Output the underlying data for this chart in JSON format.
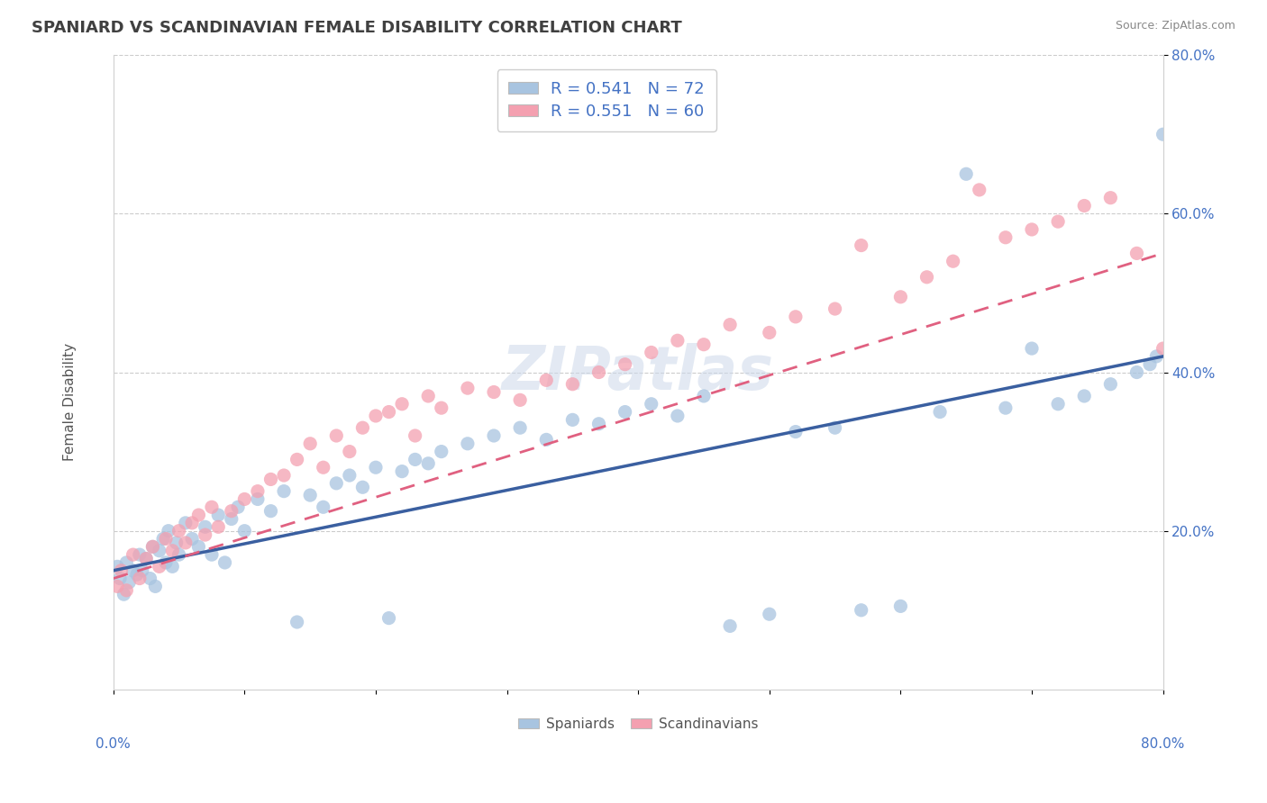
{
  "title": "SPANIARD VS SCANDINAVIAN FEMALE DISABILITY CORRELATION CHART",
  "source": "Source: ZipAtlas.com",
  "ylabel": "Female Disability",
  "spaniards_R": 0.541,
  "spaniards_N": 72,
  "scandinavians_R": 0.551,
  "scandinavians_N": 60,
  "spaniard_color": "#a8c4e0",
  "scandinavian_color": "#f4a0b0",
  "spaniard_line_color": "#3a5fa0",
  "scandinavian_line_color": "#e06080",
  "legend_label_1": "Spaniards",
  "legend_label_2": "Scandinavians",
  "title_color": "#404040",
  "axis_label_color": "#4472c4",
  "xmin": 0,
  "xmax": 80,
  "ymin": 0,
  "ymax": 80,
  "yticks": [
    20,
    40,
    60,
    80
  ],
  "ytick_labels": [
    "20.0%",
    "40.0%",
    "60.0%",
    "80.0%"
  ],
  "sp_line_x0": 0,
  "sp_line_y0": 15,
  "sp_line_x1": 80,
  "sp_line_y1": 42,
  "sc_line_x0": 0,
  "sc_line_y0": 14,
  "sc_line_x1": 80,
  "sc_line_y1": 55,
  "spaniards_x": [
    0.3,
    0.5,
    0.8,
    1.0,
    1.2,
    1.5,
    1.8,
    2.0,
    2.2,
    2.5,
    2.8,
    3.0,
    3.2,
    3.5,
    3.8,
    4.0,
    4.2,
    4.5,
    4.8,
    5.0,
    5.5,
    6.0,
    6.5,
    7.0,
    7.5,
    8.0,
    8.5,
    9.0,
    9.5,
    10.0,
    11.0,
    12.0,
    13.0,
    14.0,
    15.0,
    16.0,
    17.0,
    18.0,
    19.0,
    20.0,
    21.0,
    22.0,
    23.0,
    24.0,
    25.0,
    27.0,
    29.0,
    31.0,
    33.0,
    35.0,
    37.0,
    39.0,
    41.0,
    43.0,
    45.0,
    47.0,
    50.0,
    52.0,
    55.0,
    57.0,
    60.0,
    63.0,
    65.0,
    68.0,
    70.0,
    72.0,
    74.0,
    76.0,
    78.0,
    79.0,
    79.5,
    80.0
  ],
  "spaniards_y": [
    15.5,
    14.0,
    12.0,
    16.0,
    13.5,
    15.0,
    14.5,
    17.0,
    15.0,
    16.5,
    14.0,
    18.0,
    13.0,
    17.5,
    19.0,
    16.0,
    20.0,
    15.5,
    18.5,
    17.0,
    21.0,
    19.0,
    18.0,
    20.5,
    17.0,
    22.0,
    16.0,
    21.5,
    23.0,
    20.0,
    24.0,
    22.5,
    25.0,
    8.5,
    24.5,
    23.0,
    26.0,
    27.0,
    25.5,
    28.0,
    9.0,
    27.5,
    29.0,
    28.5,
    30.0,
    31.0,
    32.0,
    33.0,
    31.5,
    34.0,
    33.5,
    35.0,
    36.0,
    34.5,
    37.0,
    8.0,
    9.5,
    32.5,
    33.0,
    10.0,
    10.5,
    35.0,
    65.0,
    35.5,
    43.0,
    36.0,
    37.0,
    38.5,
    40.0,
    41.0,
    42.0,
    70.0
  ],
  "scandinavians_x": [
    0.3,
    0.6,
    1.0,
    1.5,
    2.0,
    2.5,
    3.0,
    3.5,
    4.0,
    4.5,
    5.0,
    5.5,
    6.0,
    6.5,
    7.0,
    7.5,
    8.0,
    9.0,
    10.0,
    11.0,
    12.0,
    13.0,
    14.0,
    15.0,
    16.0,
    17.0,
    18.0,
    19.0,
    20.0,
    21.0,
    22.0,
    23.0,
    24.0,
    25.0,
    27.0,
    29.0,
    31.0,
    33.0,
    35.0,
    37.0,
    39.0,
    41.0,
    43.0,
    45.0,
    47.0,
    50.0,
    52.0,
    55.0,
    57.0,
    60.0,
    62.0,
    64.0,
    66.0,
    68.0,
    70.0,
    72.0,
    74.0,
    76.0,
    78.0,
    80.0
  ],
  "scandinavians_y": [
    13.0,
    15.0,
    12.5,
    17.0,
    14.0,
    16.5,
    18.0,
    15.5,
    19.0,
    17.5,
    20.0,
    18.5,
    21.0,
    22.0,
    19.5,
    23.0,
    20.5,
    22.5,
    24.0,
    25.0,
    26.5,
    27.0,
    29.0,
    31.0,
    28.0,
    32.0,
    30.0,
    33.0,
    34.5,
    35.0,
    36.0,
    32.0,
    37.0,
    35.5,
    38.0,
    37.5,
    36.5,
    39.0,
    38.5,
    40.0,
    41.0,
    42.5,
    44.0,
    43.5,
    46.0,
    45.0,
    47.0,
    48.0,
    56.0,
    49.5,
    52.0,
    54.0,
    63.0,
    57.0,
    58.0,
    59.0,
    61.0,
    62.0,
    55.0,
    43.0
  ]
}
